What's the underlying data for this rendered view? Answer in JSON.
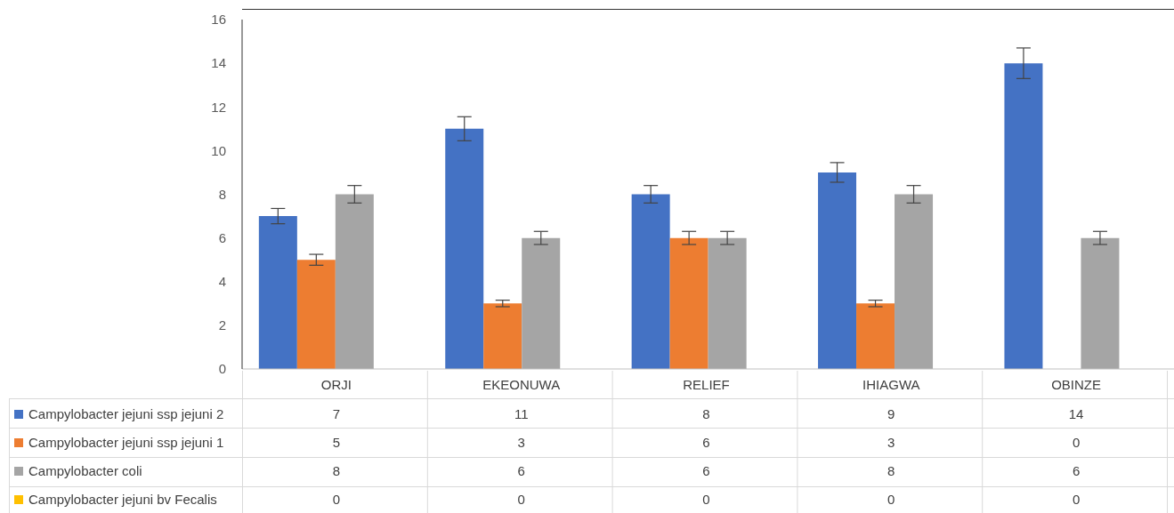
{
  "chart_data": {
    "type": "bar",
    "categories": [
      "ORJI",
      "EKEONUWA",
      "RELIEF",
      "IHIAGWA",
      "OBINZE"
    ],
    "series": [
      {
        "name": "Campylobacter jejuni ssp jejuni 2",
        "color": "#4472c4",
        "values": [
          7,
          11,
          8,
          9,
          14
        ],
        "errors": [
          0.35,
          0.55,
          0.4,
          0.45,
          0.7
        ]
      },
      {
        "name": "Campylobacter jejuni ssp jejuni 1",
        "color": "#ed7d31",
        "values": [
          5,
          3,
          6,
          3,
          0
        ],
        "errors": [
          0.25,
          0.15,
          0.3,
          0.15,
          null
        ]
      },
      {
        "name": "Campylobacter coli",
        "color": "#a5a5a5",
        "values": [
          8,
          6,
          6,
          8,
          6
        ],
        "errors": [
          0.4,
          0.3,
          0.3,
          0.4,
          0.3
        ]
      },
      {
        "name": "Campylobacter jejuni bv Fecalis",
        "color": "#ffc000",
        "values": [
          0,
          0,
          0,
          0,
          0
        ]
      }
    ],
    "ylim": [
      0,
      16
    ],
    "yticks": [
      0,
      2,
      4,
      6,
      8,
      10,
      12,
      14,
      16
    ],
    "grid": false,
    "legend": "bottom",
    "data_labels": true
  }
}
